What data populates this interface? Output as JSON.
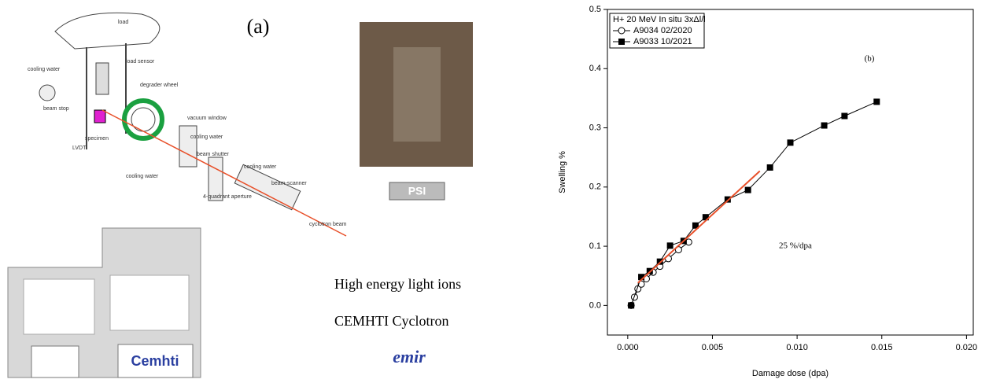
{
  "panel_a": {
    "label": "(a)",
    "diagram_labels": [
      "load",
      "cooling water",
      "load sensor",
      "degrader wheel",
      "beam stop",
      "vacuum window",
      "specimen",
      "LVDT",
      "cooling water",
      "beam shutter",
      "cooling water",
      "cooling water",
      "4-quadrant aperture",
      "beam-scanner",
      "cyclotron beam"
    ],
    "caption_lines": [
      "High energy light ions",
      "CEMHTI Cyclotron"
    ],
    "logos": [
      "PSI",
      "Cemhti",
      "emir"
    ]
  },
  "chart_data": {
    "type": "scatter",
    "panel_label": "(b)",
    "x_label": "Damage dose (dpa)",
    "y_label": "Swelling %",
    "legend_title": "H+ 20 MeV In situ 3xΔl/l",
    "annotation": "25 %/dpa",
    "xlim": [
      -0.0012,
      0.0204
    ],
    "ylim": [
      -0.05,
      0.5
    ],
    "xticks": [
      {
        "value": 0,
        "label": "0.000"
      },
      0.005,
      {
        "value": 0.01,
        "label": "0.010"
      },
      0.015,
      {
        "value": 0.02,
        "label": "0.020"
      }
    ],
    "yticks": [
      {
        "value": 0,
        "label": "0.0"
      },
      0.1,
      0.2,
      0.3,
      0.4,
      0.5
    ],
    "grid": false,
    "legend": "upper left",
    "series": [
      {
        "name": "A9034 02/2020",
        "color": "#000000",
        "marker": "open-circle",
        "x": [
          0.0002,
          0.0004,
          0.0006,
          0.0008,
          0.0011,
          0.0015,
          0.0019,
          0.0024,
          0.003,
          0.0036
        ],
        "values": [
          0.0,
          0.014,
          0.028,
          0.036,
          0.045,
          0.056,
          0.066,
          0.079,
          0.094,
          0.107
        ]
      },
      {
        "name": "A9033 10/2021",
        "color": "#000000",
        "marker": "filled-square",
        "x": [
          0.0002,
          0.0008,
          0.0013,
          0.0019,
          0.0025,
          0.0033,
          0.004,
          0.0046,
          0.0059,
          0.0071,
          0.0084,
          0.0096,
          0.0116,
          0.0128,
          0.0147
        ],
        "values": [
          0.0,
          0.048,
          0.058,
          0.074,
          0.101,
          0.109,
          0.135,
          0.149,
          0.179,
          0.195,
          0.233,
          0.275,
          0.304,
          0.32,
          0.344
        ]
      },
      {
        "color": "#e8502a",
        "marker": "none",
        "x": [
          0.0006,
          0.0078
        ],
        "values": [
          0.038,
          0.227
        ]
      }
    ]
  }
}
